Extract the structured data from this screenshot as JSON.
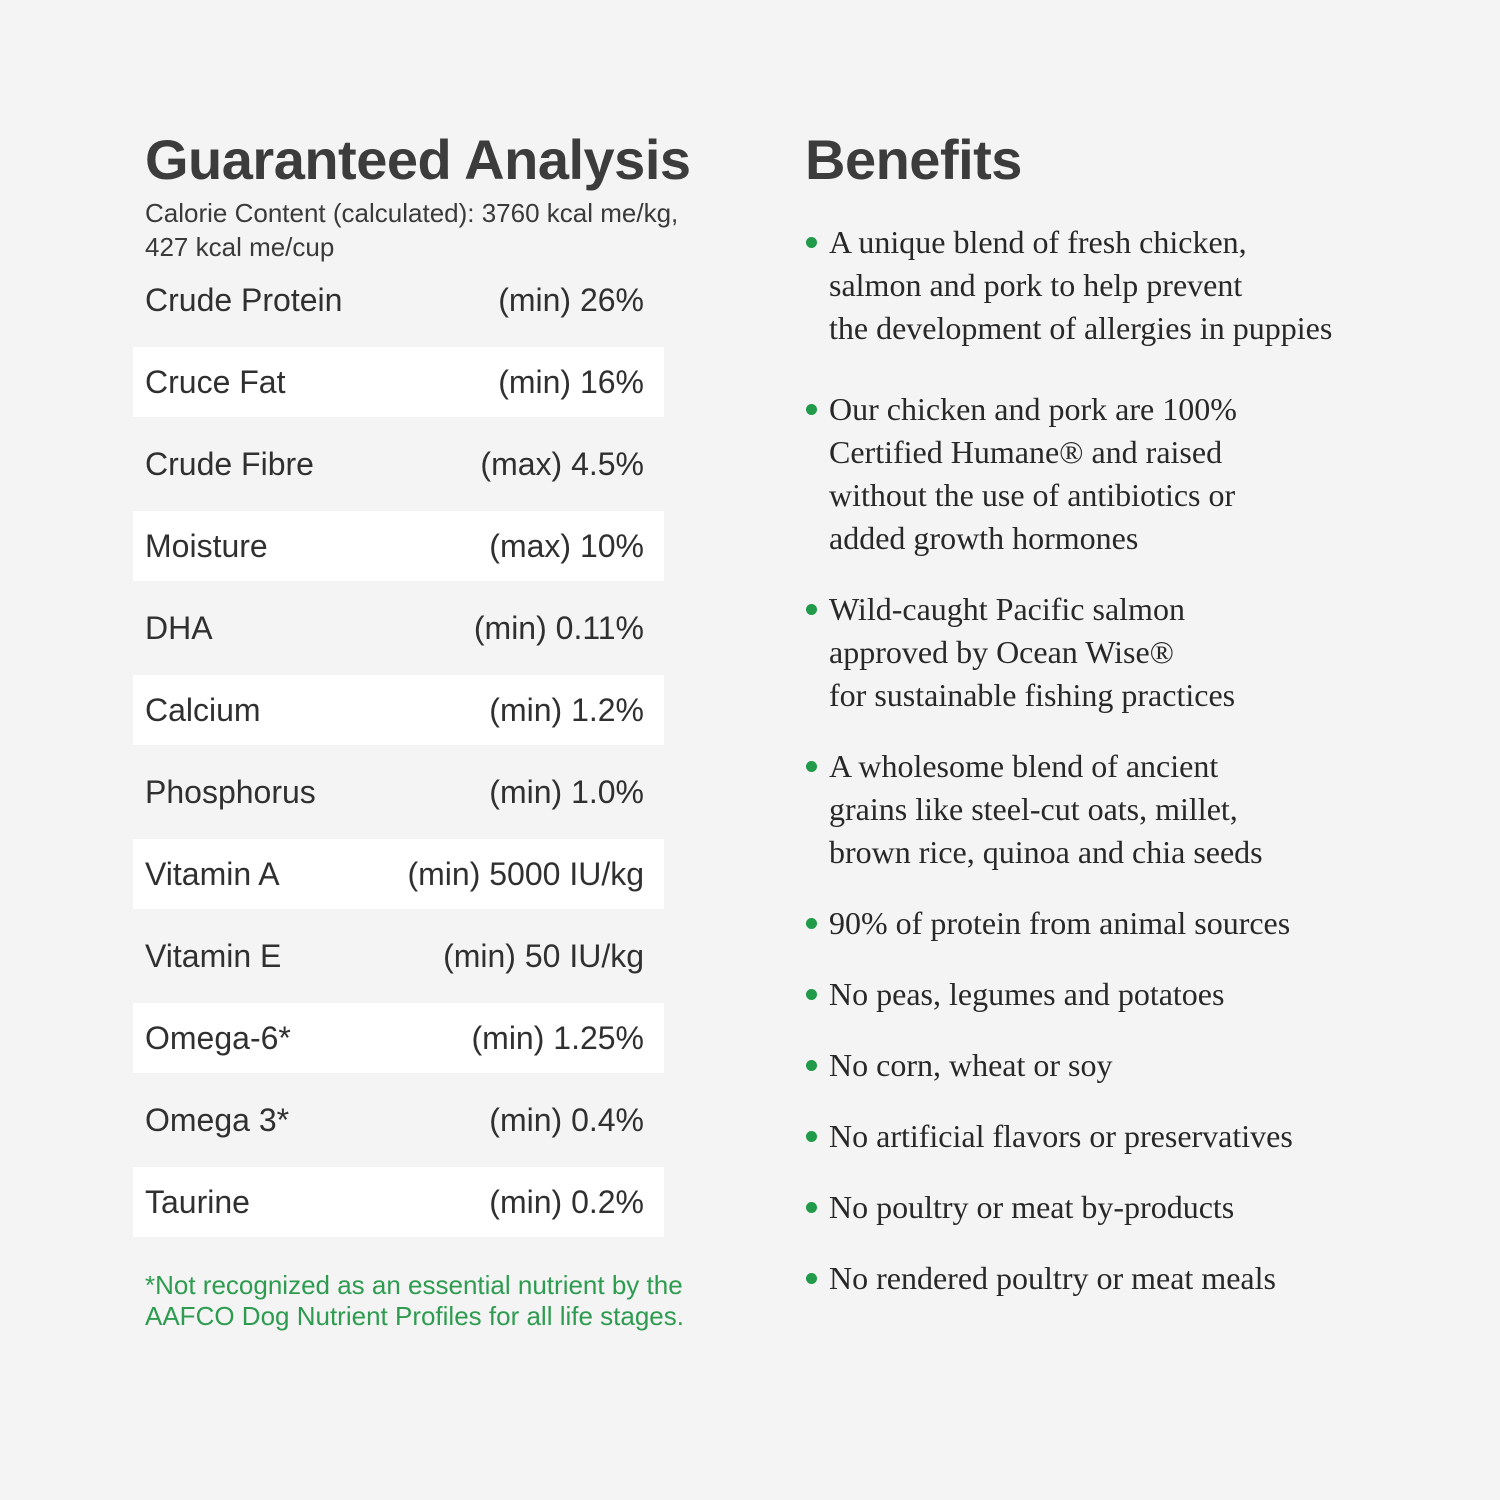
{
  "page": {
    "background_color": "#f4f4f4",
    "accent_green": "#2e9c50",
    "bullet_green": "#219a4a",
    "heading_color": "#3c3c3c",
    "row_highlight_color": "#ffffff"
  },
  "guaranteed_analysis": {
    "title": "Guaranteed Analysis",
    "calorie_content": "Calorie Content (calculated): 3760 kcal me/kg,\n427 kcal me/cup",
    "rows": [
      {
        "label": "Crude Protein",
        "value": "(min) 26%"
      },
      {
        "label": "Cruce Fat",
        "value": "(min) 16%"
      },
      {
        "label": "Crude Fibre",
        "value": "(max) 4.5%"
      },
      {
        "label": "Moisture",
        "value": "(max) 10%"
      },
      {
        "label": "DHA",
        "value": "(min) 0.11%"
      },
      {
        "label": "Calcium",
        "value": "(min) 1.2%"
      },
      {
        "label": "Phosphorus",
        "value": "(min) 1.0%"
      },
      {
        "label": "Vitamin A",
        "value": "(min) 5000 IU/kg"
      },
      {
        "label": "Vitamin E",
        "value": "(min) 50 IU/kg"
      },
      {
        "label": "Omega-6*",
        "value": "(min) 1.25%"
      },
      {
        "label": "Omega 3*",
        "value": "(min) 0.4%"
      },
      {
        "label": "Taurine",
        "value": "(min) 0.2%"
      }
    ],
    "footnote": "*Not recognized as an essential nutrient by the\nAAFCO Dog Nutrient Profiles for all life stages."
  },
  "benefits": {
    "title": "Benefits",
    "items": [
      {
        "text": "A unique blend of fresh chicken,\nsalmon and pork to help prevent\nthe development of allergies in puppies"
      },
      {
        "text": "Our chicken and pork are 100%\nCertified Humane® and raised\nwithout the use of antibiotics or\nadded growth hormones"
      },
      {
        "text": "Wild-caught Pacific salmon\napproved by Ocean Wise®\nfor sustainable fishing practices"
      },
      {
        "text": "A wholesome blend of ancient\ngrains like steel-cut oats, millet,\nbrown rice, quinoa and chia seeds"
      },
      {
        "text": "90% of protein from animal sources"
      },
      {
        "text": "No peas, legumes and potatoes"
      },
      {
        "text": "No corn, wheat or soy"
      },
      {
        "text": "No artificial flavors or preservatives"
      },
      {
        "text": "No poultry or meat by-products"
      },
      {
        "text": "No rendered poultry or meat meals"
      }
    ]
  }
}
